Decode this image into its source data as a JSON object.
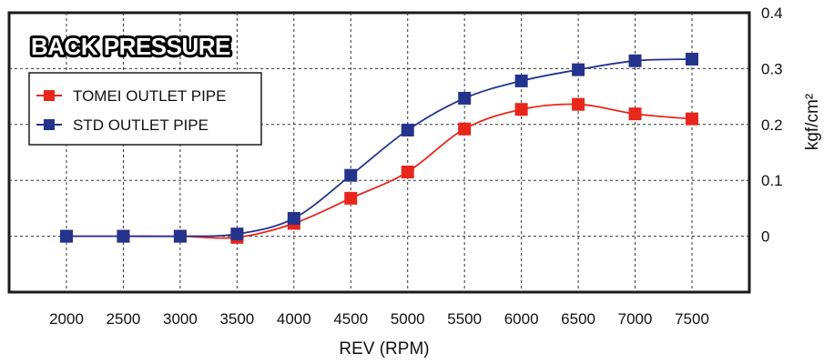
{
  "chart_data": {
    "type": "line",
    "title": "BACK PRESSURE",
    "xlabel": "REV (RPM)",
    "ylabel": "kgf/cm²",
    "x": [
      2000,
      2500,
      3000,
      3500,
      4000,
      4500,
      5000,
      5500,
      6000,
      6500,
      7000,
      7500
    ],
    "x_tick_labels": [
      "2000",
      "2500",
      "3000",
      "3500",
      "4000",
      "4500",
      "5000",
      "5500",
      "6000",
      "6500",
      "7000",
      "7500"
    ],
    "y_tick_labels": [
      "0",
      "0.1",
      "0.2",
      "0.3",
      "0.4"
    ],
    "y_ticks": [
      0,
      0.1,
      0.2,
      0.3,
      0.4
    ],
    "ylim": [
      -0.1,
      0.4
    ],
    "grid": true,
    "legend_position": "top-left",
    "series": [
      {
        "name": "TOMEI OUTLET PIPE",
        "color": "#e8261c",
        "marker": "square",
        "values": [
          0,
          0,
          0,
          -0.002,
          0.023,
          0.068,
          0.115,
          0.192,
          0.227,
          0.236,
          0.219,
          0.21
        ]
      },
      {
        "name": "STD OUTLET PIPE",
        "color": "#24338c",
        "marker": "square",
        "values": [
          0,
          0,
          0,
          0.004,
          0.032,
          0.109,
          0.19,
          0.247,
          0.278,
          0.298,
          0.314,
          0.317
        ]
      }
    ]
  }
}
